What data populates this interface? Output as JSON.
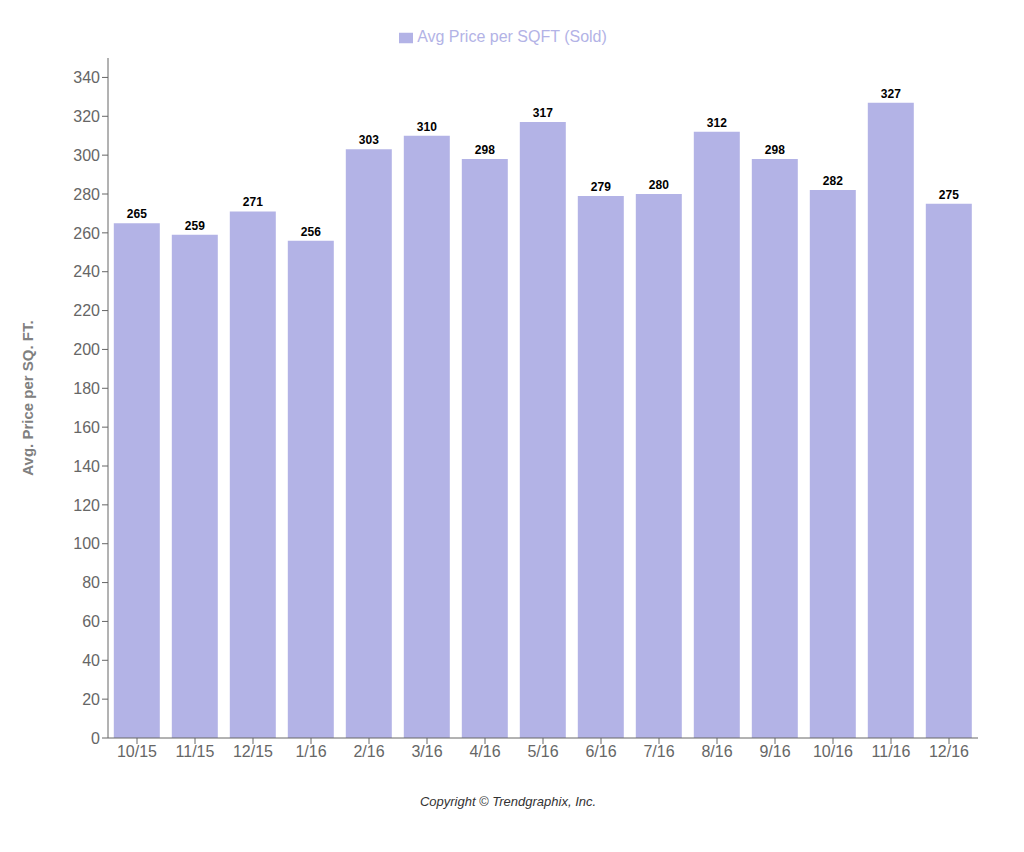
{
  "chart_data": {
    "type": "bar",
    "ylabel": "Avg. Price per SQ. FT.",
    "categories": [
      "10/15",
      "11/15",
      "12/15",
      "1/16",
      "2/16",
      "3/16",
      "4/16",
      "5/16",
      "6/16",
      "7/16",
      "8/16",
      "9/16",
      "10/16",
      "11/16",
      "12/16"
    ],
    "series": [
      {
        "name": "Avg Price per SQFT (Sold)",
        "color": "#b3b3e6",
        "values": [
          265,
          259,
          271,
          256,
          303,
          310,
          298,
          317,
          279,
          280,
          312,
          298,
          282,
          327,
          275
        ]
      }
    ],
    "ylim": [
      0,
      350
    ],
    "yticks": [
      0,
      20,
      40,
      60,
      80,
      100,
      120,
      140,
      160,
      180,
      200,
      220,
      240,
      260,
      280,
      300,
      320,
      340
    ],
    "grid": false,
    "legend": "top",
    "data_labels": true,
    "annotations": [
      "Copyright © Trendgraphix, Inc."
    ]
  }
}
